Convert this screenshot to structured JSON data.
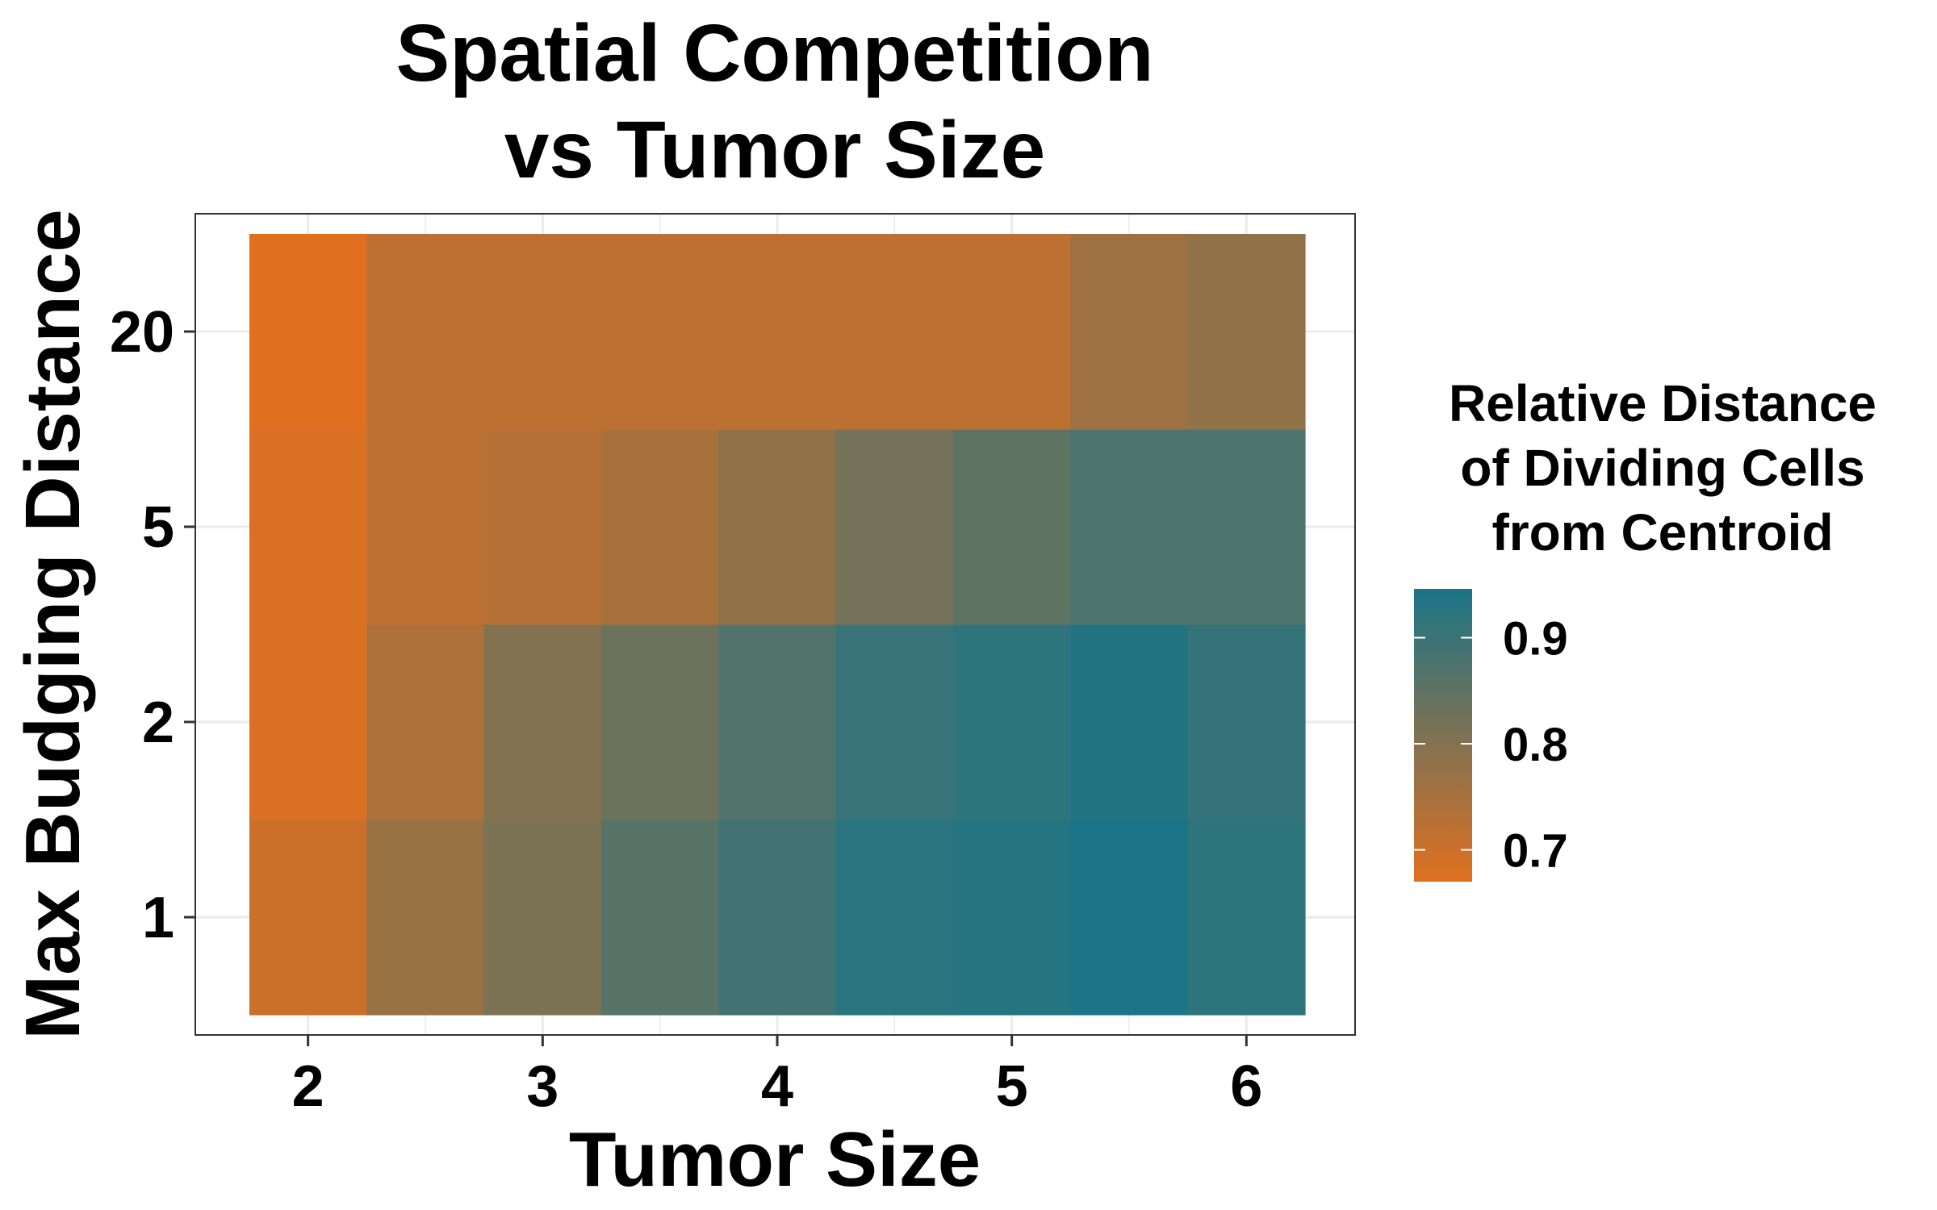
{
  "chart_data": {
    "type": "heatmap",
    "title": [
      "Spatial Competition",
      "vs Tumor Size"
    ],
    "xlabel": "Tumor Size",
    "ylabel": "Max Budging Distance",
    "x_ticks": [
      "2",
      "3",
      "4",
      "5",
      "6"
    ],
    "y_categories": [
      "1",
      "2",
      "5",
      "20"
    ],
    "x_values": [
      2,
      2.5,
      3,
      3.5,
      4,
      4.5,
      5,
      5.5,
      6
    ],
    "xlim": [
      1.75,
      6.25
    ],
    "grid": true,
    "legend": {
      "title": [
        "Relative Distance",
        "of Dividing Cells",
        "from Centroid"
      ],
      "ticks": [
        "0.7",
        "0.8",
        "0.9"
      ],
      "tick_values": [
        0.7,
        0.8,
        0.9
      ],
      "range": [
        0.67,
        0.946
      ],
      "low_color": "#e07020",
      "high_color": "#1a7487",
      "placement": "right"
    },
    "rows": [
      {
        "y": "1",
        "values": [
          0.7,
          0.77,
          0.81,
          0.86,
          0.89,
          0.925,
          0.93,
          0.945,
          0.92
        ]
      },
      {
        "y": "2",
        "values": [
          0.68,
          0.74,
          0.8,
          0.83,
          0.87,
          0.905,
          0.92,
          0.935,
          0.91
        ]
      },
      {
        "y": "5",
        "values": [
          0.68,
          0.72,
          0.73,
          0.75,
          0.78,
          0.82,
          0.85,
          0.875,
          0.875
        ]
      },
      {
        "y": "20",
        "values": [
          0.67,
          0.72,
          0.72,
          0.72,
          0.72,
          0.72,
          0.72,
          0.76,
          0.78
        ]
      }
    ]
  }
}
